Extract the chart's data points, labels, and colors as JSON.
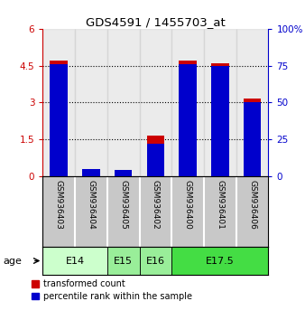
{
  "title": "GDS4591 / 1455703_at",
  "samples": [
    "GSM936403",
    "GSM936404",
    "GSM936405",
    "GSM936402",
    "GSM936400",
    "GSM936401",
    "GSM936406"
  ],
  "transformed_count": [
    4.7,
    0.2,
    0.25,
    1.65,
    4.7,
    4.6,
    3.15
  ],
  "percentile_pct": [
    76,
    5,
    4,
    22,
    76,
    75,
    50
  ],
  "ylim_left": [
    0,
    6
  ],
  "ylim_right": [
    0,
    100
  ],
  "yticks_left": [
    0,
    1.5,
    3.0,
    4.5,
    6
  ],
  "yticks_right": [
    0,
    25,
    50,
    75,
    100
  ],
  "bar_color_red": "#cc0000",
  "bar_color_blue": "#0000cc",
  "sample_bg_color": "#c8c8c8",
  "age_groups": [
    {
      "label": "E14",
      "start": 0,
      "end": 2,
      "color": "#ccffcc"
    },
    {
      "label": "E15",
      "start": 2,
      "end": 3,
      "color": "#99ee99"
    },
    {
      "label": "E16",
      "start": 3,
      "end": 4,
      "color": "#99ee99"
    },
    {
      "label": "E17.5",
      "start": 4,
      "end": 7,
      "color": "#44dd44"
    }
  ],
  "legend_red_label": "transformed count",
  "legend_blue_label": "percentile rank within the sample",
  "bar_width": 0.55
}
